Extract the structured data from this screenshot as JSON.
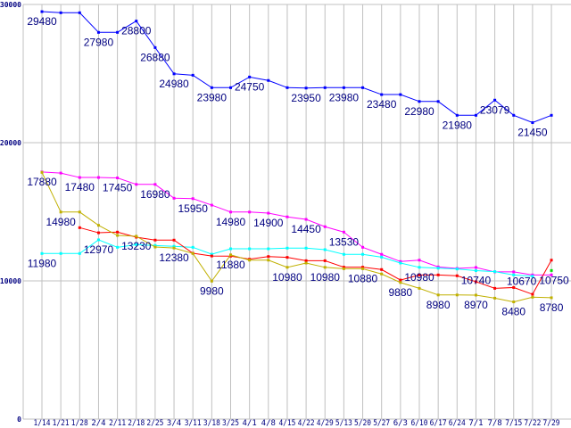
{
  "chart_data": {
    "type": "line",
    "title": "",
    "xlabel": "",
    "ylabel": "",
    "ylim": [
      0,
      30000
    ],
    "yticks": [
      "0",
      "10000",
      "20000",
      "30000"
    ],
    "grid": true,
    "categories": [
      "1/14",
      "1/21",
      "1/28",
      "2/4",
      "2/11",
      "2/18",
      "2/25",
      "3/4",
      "3/11",
      "3/18",
      "3/25",
      "4/1",
      "4/8",
      "4/15",
      "4/22",
      "4/29",
      "5/13",
      "5/20",
      "5/27",
      "6/3",
      "6/10",
      "6/17",
      "6/24",
      "7/1",
      "7/8",
      "7/15",
      "7/22",
      "7/29"
    ],
    "series": [
      {
        "name": "blue",
        "color": "#0000ff",
        "values": [
          29480,
          29400,
          29400,
          27980,
          27980,
          28800,
          26880,
          24980,
          24880,
          23980,
          23980,
          24750,
          24500,
          23980,
          23950,
          23980,
          23980,
          23980,
          23480,
          23480,
          22980,
          22980,
          21980,
          21980,
          23079,
          21980,
          21450,
          21980
        ]
      },
      {
        "name": "magenta",
        "color": "#ff00ff",
        "values": [
          17880,
          17800,
          17480,
          17480,
          17450,
          16980,
          16980,
          15980,
          15950,
          15480,
          14980,
          14980,
          14900,
          14630,
          14450,
          13920,
          13530,
          12430,
          11920,
          11400,
          11500,
          11010,
          10900,
          10970,
          10650,
          10650,
          10430,
          10430
        ]
      },
      {
        "name": "cyan",
        "color": "#00ffff",
        "values": [
          11980,
          11980,
          11980,
          12970,
          12430,
          12620,
          12560,
          12500,
          12430,
          11930,
          12320,
          12320,
          12320,
          12370,
          12370,
          12260,
          11920,
          11920,
          11720,
          11290,
          10980,
          10920,
          10860,
          10740,
          10670,
          10430,
          10340,
          null
        ]
      },
      {
        "name": "red",
        "color": "#ff0000",
        "values": [
          null,
          null,
          13850,
          13480,
          13530,
          13160,
          12950,
          12950,
          12000,
          11800,
          11790,
          11570,
          11760,
          11700,
          11460,
          11460,
          10990,
          10990,
          10820,
          10060,
          10430,
          10430,
          10370,
          9940,
          9460,
          9520,
          9030,
          11500
        ]
      },
      {
        "name": "yellow",
        "color": "#c0b000",
        "values": [
          17850,
          14980,
          14980,
          14020,
          13290,
          13230,
          12450,
          12380,
          11980,
          9980,
          11880,
          11500,
          11500,
          10980,
          11290,
          10980,
          10880,
          10880,
          10500,
          9880,
          9460,
          8980,
          8980,
          8970,
          8750,
          8480,
          8820,
          8780
        ]
      },
      {
        "name": "green",
        "color": "#00e000",
        "values": [
          null,
          null,
          null,
          null,
          null,
          null,
          null,
          null,
          null,
          null,
          null,
          null,
          null,
          null,
          null,
          null,
          null,
          null,
          null,
          null,
          null,
          null,
          null,
          null,
          null,
          null,
          null,
          10750
        ]
      }
    ],
    "data_labels": [
      {
        "series": 0,
        "index": 0,
        "text": "29480"
      },
      {
        "series": 0,
        "index": 3,
        "text": "27980"
      },
      {
        "series": 0,
        "index": 5,
        "text": "28800"
      },
      {
        "series": 0,
        "index": 6,
        "text": "26880"
      },
      {
        "series": 0,
        "index": 7,
        "text": "24980"
      },
      {
        "series": 0,
        "index": 9,
        "text": "23980"
      },
      {
        "series": 0,
        "index": 11,
        "text": "24750"
      },
      {
        "series": 0,
        "index": 14,
        "text": "23950"
      },
      {
        "series": 0,
        "index": 16,
        "text": "23980"
      },
      {
        "series": 0,
        "index": 18,
        "text": "23480"
      },
      {
        "series": 0,
        "index": 20,
        "text": "22980"
      },
      {
        "series": 0,
        "index": 22,
        "text": "21980"
      },
      {
        "series": 0,
        "index": 24,
        "text": "23079"
      },
      {
        "series": 0,
        "index": 26,
        "text": "21450"
      },
      {
        "series": 1,
        "index": 0,
        "text": "17880"
      },
      {
        "series": 1,
        "index": 2,
        "text": "17480"
      },
      {
        "series": 1,
        "index": 4,
        "text": "17450"
      },
      {
        "series": 1,
        "index": 6,
        "text": "16980"
      },
      {
        "series": 1,
        "index": 8,
        "text": "15950"
      },
      {
        "series": 1,
        "index": 10,
        "text": "14980"
      },
      {
        "series": 1,
        "index": 12,
        "text": "14900"
      },
      {
        "series": 1,
        "index": 14,
        "text": "14450"
      },
      {
        "series": 1,
        "index": 16,
        "text": "13530"
      },
      {
        "series": 4,
        "index": 1,
        "text": "14980"
      },
      {
        "series": 2,
        "index": 3,
        "text": "12970"
      },
      {
        "series": 4,
        "index": 5,
        "text": "13230"
      },
      {
        "series": 4,
        "index": 7,
        "text": "12380"
      },
      {
        "series": 2,
        "index": 0,
        "text": "11980"
      },
      {
        "series": 4,
        "index": 9,
        "text": "9980"
      },
      {
        "series": 4,
        "index": 10,
        "text": "11880"
      },
      {
        "series": 4,
        "index": 13,
        "text": "10980"
      },
      {
        "series": 4,
        "index": 15,
        "text": "10980"
      },
      {
        "series": 4,
        "index": 17,
        "text": "10880"
      },
      {
        "series": 4,
        "index": 19,
        "text": "9880"
      },
      {
        "series": 2,
        "index": 20,
        "text": "10980"
      },
      {
        "series": 2,
        "index": 23,
        "text": "10740"
      },
      {
        "series": 2,
        "index": 24,
        "text": "10670"
      },
      {
        "series": 5,
        "index": 27,
        "text": "10750"
      },
      {
        "series": 4,
        "index": 21,
        "text": "8980"
      },
      {
        "series": 4,
        "index": 23,
        "text": "8970"
      },
      {
        "series": 4,
        "index": 25,
        "text": "8480"
      },
      {
        "series": 4,
        "index": 27,
        "text": "8780"
      }
    ],
    "grid_color": "#c0c0c0",
    "label_color": "#000080"
  }
}
